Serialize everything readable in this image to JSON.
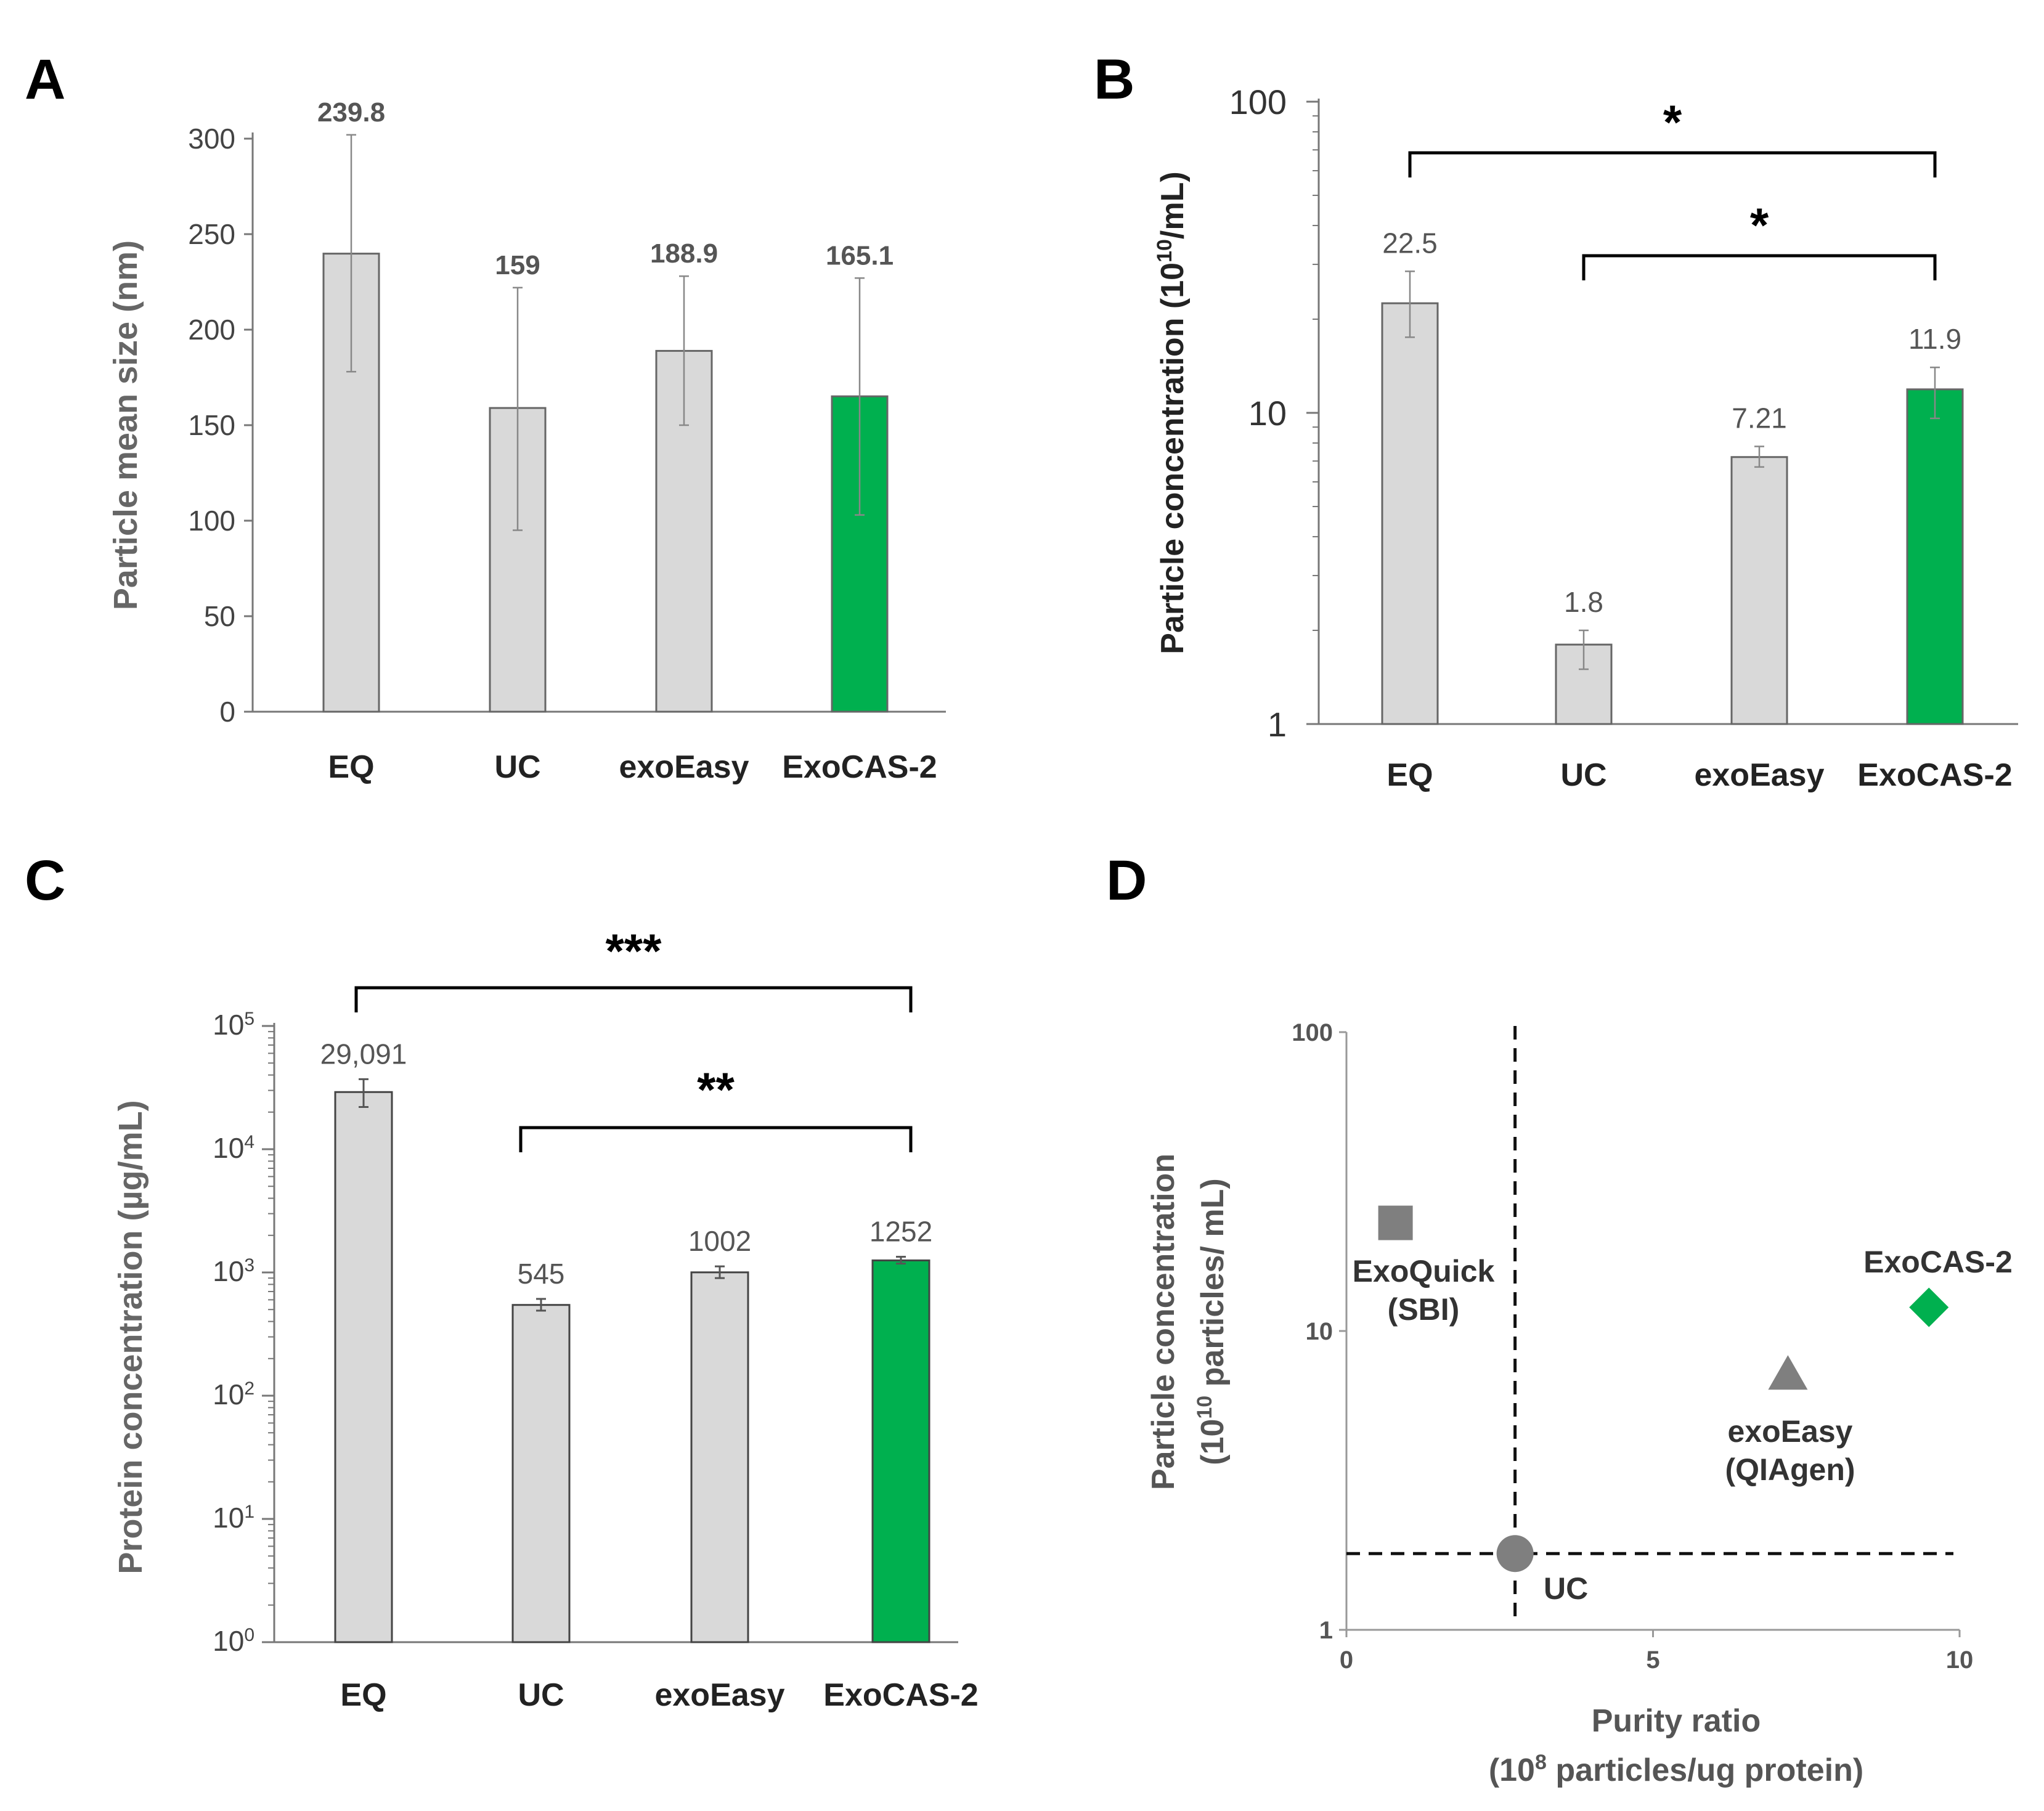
{
  "panels": [
    "A",
    "B",
    "C",
    "D"
  ],
  "chart_data": [
    {
      "panel": "A",
      "type": "bar",
      "categories": [
        "EQ",
        "UC",
        "exoEasy",
        "ExoCAS-2"
      ],
      "values": [
        239.8,
        159,
        188.9,
        165.1
      ],
      "value_labels": [
        "239.8",
        "159",
        "188.9",
        "165.1"
      ],
      "error_low": [
        178,
        95,
        150,
        103
      ],
      "error_high": [
        302,
        222,
        228,
        227
      ],
      "ylabel": "Particle mean size (nm)",
      "ylim": [
        0,
        300
      ],
      "yticks": [
        "0",
        "50",
        "100",
        "150",
        "200",
        "250",
        "300"
      ],
      "bar_colors": [
        "#d9d9d9",
        "#d9d9d9",
        "#d9d9d9",
        "#00b04f"
      ]
    },
    {
      "panel": "B",
      "type": "bar",
      "categories": [
        "EQ",
        "UC",
        "exoEasy",
        "ExoCAS-2"
      ],
      "values": [
        22.5,
        1.8,
        7.21,
        11.9
      ],
      "value_labels": [
        "22.5",
        "1.8",
        "7.21",
        "11.9"
      ],
      "error_low": [
        17.5,
        1.5,
        6.7,
        9.6
      ],
      "error_high": [
        28.5,
        2.0,
        7.8,
        14.0
      ],
      "ylabel": "Particle concentration (10",
      "ylabel_sup": "10",
      "ylabel_tail": "/mL)",
      "yscale": "log",
      "ylim": [
        1,
        100
      ],
      "yticks": [
        "1",
        "10",
        "100"
      ],
      "brackets": [
        {
          "from": "EQ",
          "to": "ExoCAS-2",
          "label": "*"
        },
        {
          "from": "UC",
          "to": "ExoCAS-2",
          "label": "*"
        }
      ],
      "bar_colors": [
        "#d9d9d9",
        "#d9d9d9",
        "#d9d9d9",
        "#00b04f"
      ]
    },
    {
      "panel": "C",
      "type": "bar",
      "categories": [
        "EQ",
        "UC",
        "exoEasy",
        "ExoCAS-2"
      ],
      "values": [
        29091,
        545,
        1002,
        1252
      ],
      "value_labels": [
        "29,091",
        "545",
        "1002",
        "1252"
      ],
      "error_low": [
        22000,
        490,
        900,
        1180
      ],
      "error_high": [
        37000,
        610,
        1120,
        1340
      ],
      "ylabel": "Protein concentration (µg/mL)",
      "yscale": "log",
      "ylim": [
        1,
        100000
      ],
      "yticks_base": "10",
      "yticks_exp": [
        "0",
        "1",
        "2",
        "3",
        "4",
        "5"
      ],
      "brackets": [
        {
          "from": "EQ",
          "to": "ExoCAS-2",
          "label": "***"
        },
        {
          "from": "UC",
          "to": "ExoCAS-2",
          "label": "**"
        }
      ],
      "bar_colors": [
        "#d9d9d9",
        "#d9d9d9",
        "#d9d9d9",
        "#00b04f"
      ]
    },
    {
      "panel": "D",
      "type": "scatter",
      "points": [
        {
          "label": "ExoQuick",
          "sublabel": "(SBI)",
          "x": 0.8,
          "y": 23,
          "marker": "square",
          "color": "#7f7f7f"
        },
        {
          "label": "UC",
          "sublabel": "",
          "x": 2.75,
          "y": 1.8,
          "marker": "circle",
          "color": "#7f7f7f"
        },
        {
          "label": "exoEasy",
          "sublabel": "(QIAgen)",
          "x": 7.2,
          "y": 7.2,
          "marker": "triangle",
          "color": "#7f7f7f"
        },
        {
          "label": "ExoCAS-2",
          "sublabel": "",
          "x": 9.5,
          "y": 12,
          "marker": "diamond",
          "color": "#00b04f"
        }
      ],
      "xlabel": "Purity ratio",
      "xlabel2_pre": "(10",
      "xlabel2_sup": "8",
      "xlabel2_post": " particles/ug protein)",
      "ylabel": "Particle concentration",
      "ylabel2_pre": "(10",
      "ylabel2_sup": "10",
      "ylabel2_post": " particles/ mL)",
      "xlim": [
        0,
        10
      ],
      "xticks": [
        "0",
        "5",
        "10"
      ],
      "yscale": "log",
      "ylim": [
        1,
        100
      ],
      "yticks": [
        "1",
        "10",
        "100"
      ],
      "reference_lines": {
        "x": 2.75,
        "y": 1.8
      }
    }
  ]
}
